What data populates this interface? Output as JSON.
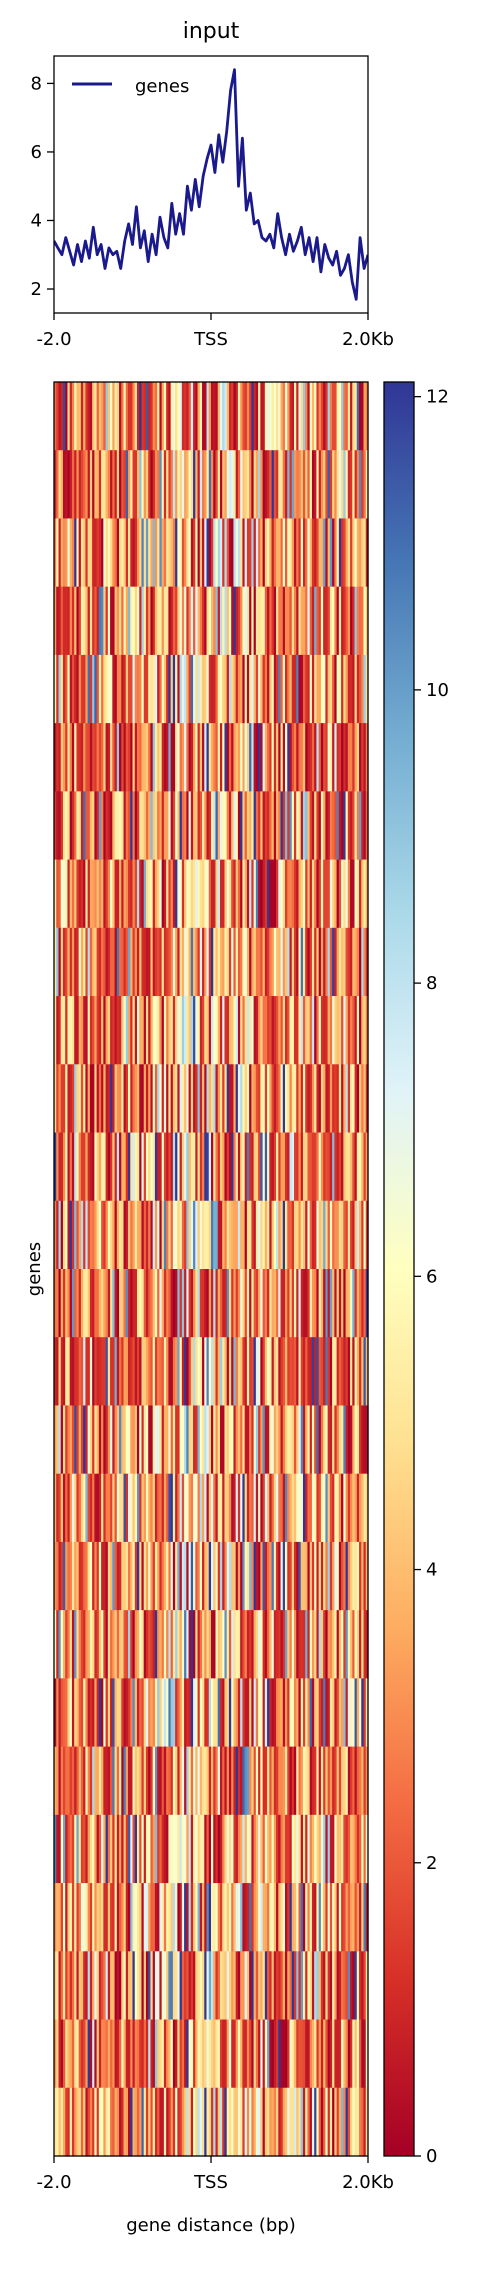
{
  "title": "input",
  "chart_data": [
    {
      "type": "line",
      "title": "input",
      "xlabel": "",
      "ylabel": "",
      "ylim": [
        1.3,
        8.8
      ],
      "yticks": [
        2,
        4,
        6,
        8
      ],
      "xtick_labels": [
        "-2.0",
        "TSS",
        "2.0Kb"
      ],
      "xlim": [
        -2000,
        2000
      ],
      "legend": "top-left",
      "color": "#1a1a8c",
      "series": [
        {
          "name": "genes",
          "x": [
            -2000,
            -1950,
            -1900,
            -1850,
            -1800,
            -1750,
            -1700,
            -1650,
            -1600,
            -1550,
            -1500,
            -1450,
            -1400,
            -1350,
            -1300,
            -1250,
            -1200,
            -1150,
            -1100,
            -1050,
            -1000,
            -950,
            -900,
            -850,
            -800,
            -750,
            -700,
            -650,
            -600,
            -550,
            -500,
            -450,
            -400,
            -350,
            -300,
            -250,
            -200,
            -150,
            -100,
            -50,
            0,
            50,
            100,
            150,
            200,
            250,
            300,
            350,
            400,
            450,
            500,
            550,
            600,
            650,
            700,
            750,
            800,
            850,
            900,
            950,
            1000,
            1050,
            1100,
            1150,
            1200,
            1250,
            1300,
            1350,
            1400,
            1450,
            1500,
            1550,
            1600,
            1650,
            1700,
            1750,
            1800,
            1850,
            1900,
            1950,
            2000
          ],
          "values": [
            3.4,
            3.2,
            3.0,
            3.5,
            3.1,
            2.7,
            3.3,
            2.8,
            3.4,
            2.9,
            3.8,
            3.0,
            3.3,
            2.6,
            3.2,
            3.0,
            3.1,
            2.6,
            3.4,
            3.9,
            3.3,
            4.4,
            3.2,
            3.7,
            2.8,
            3.6,
            3.0,
            4.1,
            3.5,
            3.2,
            4.5,
            3.6,
            4.2,
            3.6,
            5.0,
            4.3,
            5.2,
            4.4,
            5.3,
            5.8,
            6.2,
            5.4,
            6.5,
            5.7,
            6.6,
            7.8,
            8.4,
            5.0,
            6.4,
            4.3,
            4.8,
            3.9,
            4.0,
            3.5,
            3.4,
            3.6,
            3.2,
            4.2,
            3.5,
            3.0,
            3.6,
            3.1,
            3.4,
            3.8,
            3.0,
            3.5,
            2.8,
            3.5,
            2.5,
            3.3,
            2.9,
            2.7,
            3.1,
            2.4,
            2.6,
            3.0,
            2.2,
            1.7,
            3.5,
            2.6,
            3.0
          ]
        }
      ]
    },
    {
      "type": "heatmap",
      "xlabel": "gene distance (bp)",
      "ylabel": "genes",
      "xtick_labels": [
        "-2.0",
        "TSS",
        "2.0Kb"
      ],
      "colorbar": {
        "range": [
          0,
          12.1
        ],
        "ticks": [
          0,
          2,
          4,
          6,
          8,
          10,
          12
        ],
        "colormap": "RdYlBu",
        "stops": [
          "#a50026",
          "#d73027",
          "#f46d43",
          "#fdae61",
          "#fee090",
          "#ffffbf",
          "#e0f3f8",
          "#abd9e9",
          "#74add1",
          "#4575b4",
          "#313695"
        ]
      },
      "rows": 26,
      "columns": 140,
      "seed": 7
    }
  ]
}
